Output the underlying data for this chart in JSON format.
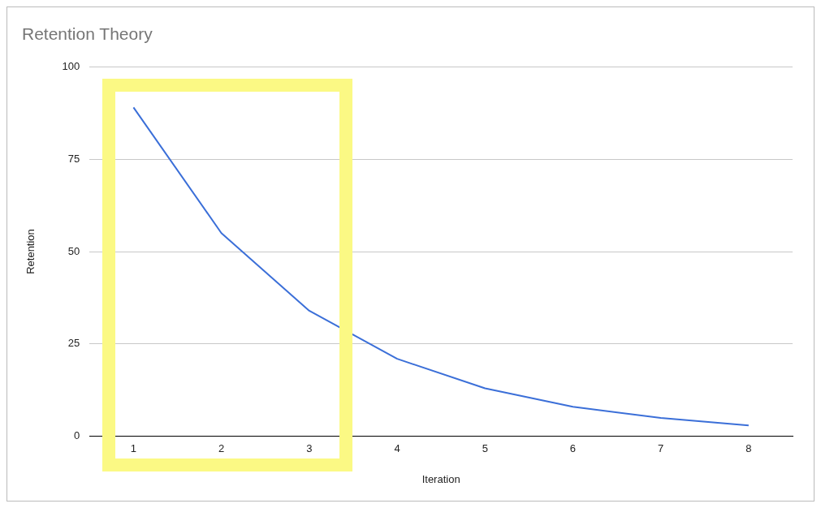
{
  "chart_data": {
    "type": "line",
    "title": "Retention Theory",
    "xlabel": "Iteration",
    "ylabel": "Retention",
    "categories": [
      "1",
      "2",
      "3",
      "4",
      "5",
      "6",
      "7",
      "8"
    ],
    "series": [
      {
        "color": "#3b6fd8",
        "values": [
          89,
          55,
          34,
          21,
          13,
          8,
          5,
          3
        ]
      }
    ],
    "ylim": [
      0,
      100
    ],
    "yticks": [
      0,
      25,
      50,
      75,
      100
    ],
    "grid": "y",
    "legend": false,
    "marker": "none",
    "line_style": "solid"
  }
}
